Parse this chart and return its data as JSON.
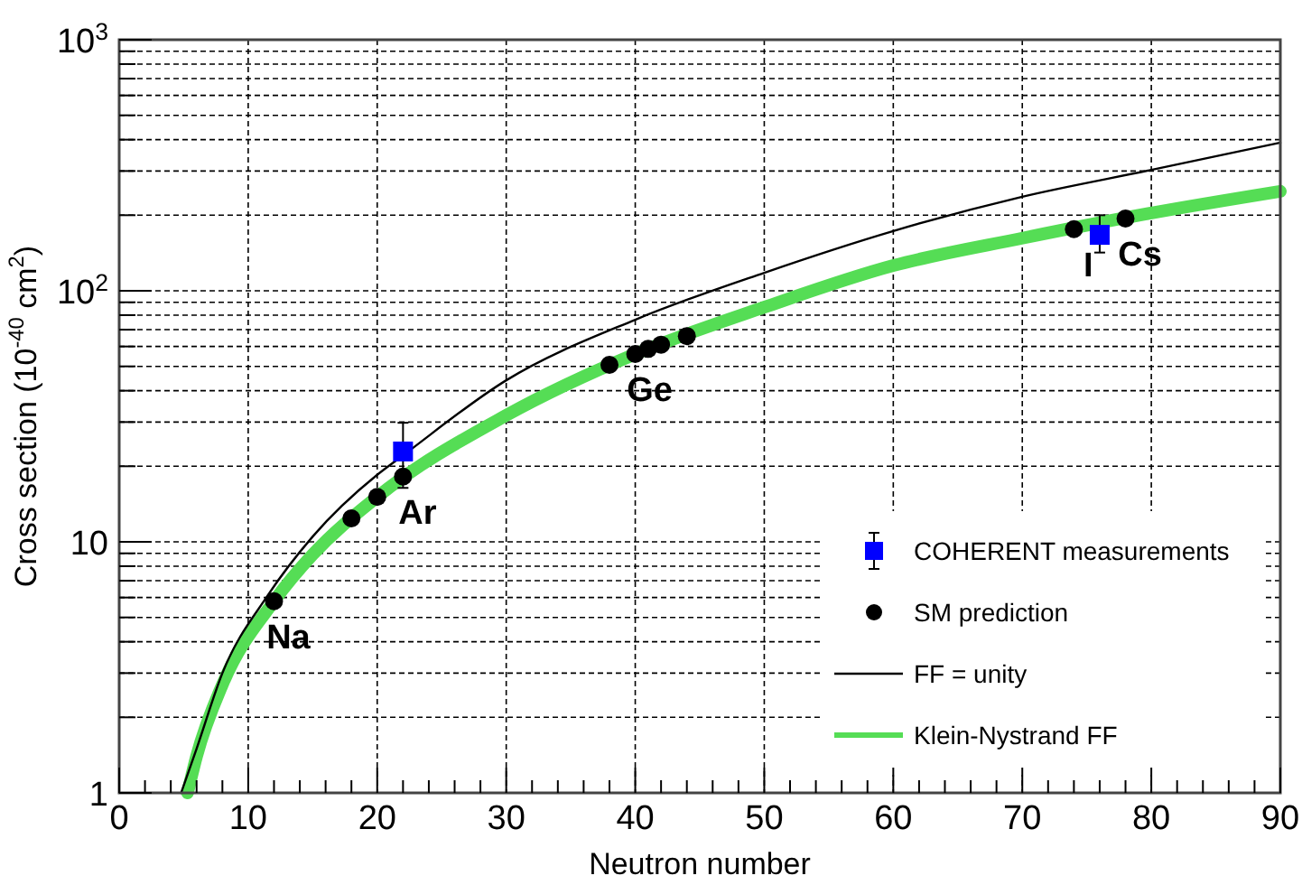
{
  "chart_data": {
    "type": "scatter",
    "xlabel": "Neutron number",
    "ylabel": "Cross section (10$^{-40}$ cm$^{2}$)",
    "log": "y",
    "grid": true,
    "legend": "bottom right",
    "xlim": [
      0,
      90
    ],
    "xticks": [
      0,
      10,
      20,
      30,
      40,
      50,
      60,
      70,
      80,
      90
    ],
    "ylim": [
      1,
      1000
    ],
    "yticks": [
      1,
      10,
      {
        "value": 100,
        "label": "10$^{2}$"
      },
      {
        "value": 1000,
        "label": "10$^{3}$"
      }
    ],
    "series": [
      {
        "name": "COHERENT measurements",
        "marker": "square",
        "color": "#0000ff",
        "x": [
          22,
          76
        ],
        "values": [
          22.9,
          167
        ],
        "errors": [
          [
            16.4,
            29.8
          ],
          [
            142,
            200
          ]
        ]
      },
      {
        "name": "SM prediction",
        "marker": "circle",
        "color": "#000000",
        "x": [
          12,
          18,
          20,
          22,
          38,
          40,
          41,
          42,
          44,
          74,
          78
        ],
        "values": [
          5.8,
          12.4,
          15.1,
          18.2,
          50.7,
          56,
          58.7,
          61,
          66,
          176,
          194
        ]
      },
      {
        "name": "FF = unity",
        "type": "line",
        "marker": "none",
        "color": "#000000",
        "x": [
          4.8,
          6,
          8,
          11.5,
          15,
          20,
          22,
          30,
          40,
          50,
          60,
          70,
          80,
          90
        ],
        "values": [
          1,
          1.5,
          3,
          6.1,
          10.5,
          18.5,
          22.1,
          44,
          76.7,
          118,
          173,
          237,
          303,
          389
        ]
      },
      {
        "name": "Klein-Nystrand FF",
        "type": "line",
        "marker": "none",
        "color": "#55dd55",
        "x": [
          5.3,
          6,
          8,
          12,
          15,
          20,
          30,
          40,
          50,
          60,
          70,
          80,
          90
        ],
        "values": [
          1,
          1.4,
          2.7,
          5.8,
          8.9,
          15.1,
          31.9,
          56,
          86,
          126,
          162,
          204,
          249
        ]
      }
    ],
    "annotations": [
      {
        "text": "Na",
        "x": 12,
        "y": 5.8
      },
      {
        "text": "Ar",
        "x": 22,
        "y": 18.2
      },
      {
        "text": "Ge",
        "x": 40,
        "y": 56
      },
      {
        "text": "I",
        "x": 74,
        "y": 176
      },
      {
        "text": "Cs",
        "x": 78,
        "y": 194
      }
    ]
  }
}
